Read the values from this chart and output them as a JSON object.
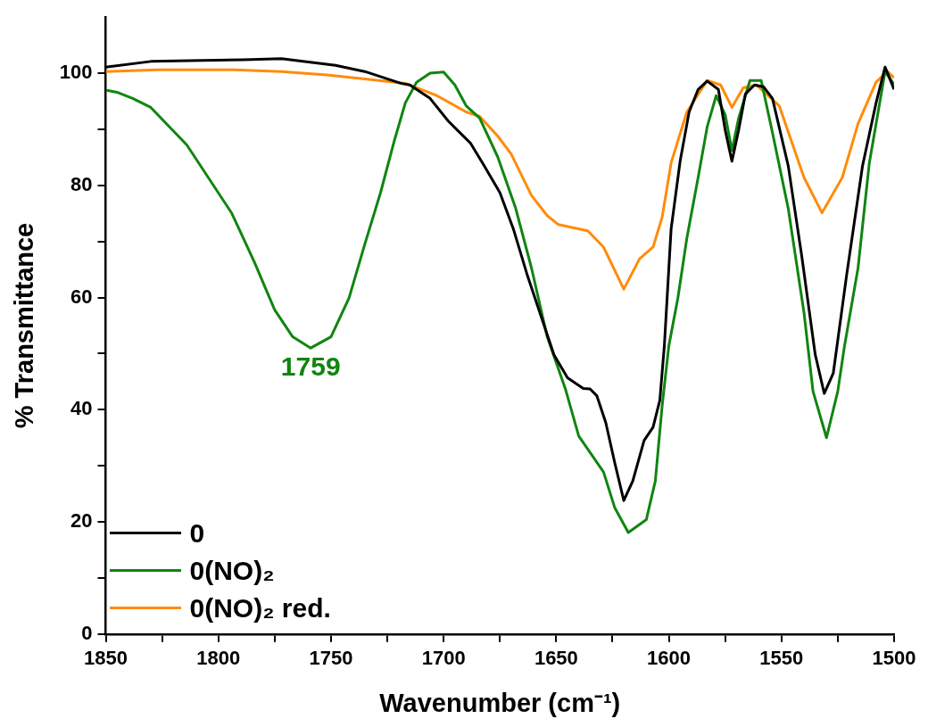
{
  "chart_data": {
    "type": "line",
    "xlabel": "Wavenumber (cm⁻¹)",
    "ylabel": "% Transmittance",
    "xlim": [
      1850,
      1500
    ],
    "xticks": [
      1850,
      {
        "value": 1825,
        "label": null
      },
      1800,
      {
        "value": 1775,
        "label": null
      },
      1750,
      {
        "value": 1725,
        "label": null
      },
      1700,
      {
        "value": 1675,
        "label": null
      },
      1650,
      {
        "value": 1625,
        "label": null
      },
      1600,
      {
        "value": 1575,
        "label": null
      },
      1550,
      {
        "value": 1525,
        "label": null
      },
      1500
    ],
    "ylim": [
      0,
      110
    ],
    "yticks": [
      0,
      {
        "value": 10,
        "label": null
      },
      20,
      {
        "value": 30,
        "label": null
      },
      40,
      {
        "value": 50,
        "label": null
      },
      60,
      {
        "value": 70,
        "label": null
      },
      80,
      {
        "value": 90,
        "label": null
      },
      100
    ],
    "grid": false,
    "legend": "bottom left",
    "marker": "none",
    "line_style": "solid",
    "annotations": [
      {
        "text": "1759",
        "x": 1759,
        "y": 51
      }
    ],
    "series": [
      {
        "name": "0",
        "color": "#000000",
        "x": [
          1850,
          1830,
          1789,
          1772,
          1748,
          1735,
          1719,
          1715,
          1706,
          1698,
          1688,
          1682,
          1675,
          1669,
          1663,
          1657,
          1651,
          1645,
          1638,
          1635,
          1632,
          1628,
          1624,
          1620,
          1616,
          1611,
          1607,
          1604,
          1602,
          1599,
          1595,
          1591,
          1587,
          1583,
          1578,
          1575,
          1572,
          1569,
          1566,
          1562,
          1558,
          1554,
          1547,
          1541,
          1535,
          1531,
          1527,
          1521,
          1514,
          1508,
          1504,
          1500
        ],
        "values": [
          101.1,
          102.1,
          102.4,
          102.6,
          101.4,
          100.3,
          98.2,
          97.9,
          95.5,
          91.5,
          87.5,
          83.5,
          78.7,
          72.2,
          64.2,
          57.0,
          49.8,
          45.7,
          43.8,
          43.7,
          42.5,
          37.7,
          30.5,
          23.8,
          27.3,
          34.5,
          36.9,
          41.7,
          51.4,
          72.2,
          84.3,
          93.1,
          97.1,
          98.6,
          97.1,
          89.9,
          84.3,
          89.9,
          96.3,
          97.9,
          97.6,
          95.5,
          83.5,
          67.4,
          49.8,
          42.9,
          46.5,
          64.2,
          83.5,
          94.7,
          101.1,
          97.1
        ]
      },
      {
        "name": "0(NO)₂",
        "color": "#108510",
        "x": [
          1850,
          1845,
          1838,
          1830,
          1814,
          1794,
          1784,
          1775,
          1767,
          1759,
          1750,
          1742,
          1735,
          1728,
          1722,
          1717,
          1712,
          1706,
          1700,
          1695,
          1690,
          1684,
          1676,
          1668,
          1661,
          1654,
          1646,
          1640,
          1629,
          1624,
          1618,
          1610,
          1606,
          1603,
          1600,
          1596,
          1592,
          1587,
          1583,
          1579,
          1575,
          1572,
          1569,
          1564,
          1559,
          1554,
          1547,
          1540,
          1536,
          1530,
          1525,
          1522,
          1516,
          1511,
          1504,
          1500
        ],
        "values": [
          97.0,
          96.6,
          95.5,
          93.9,
          87.2,
          75.0,
          66.3,
          57.8,
          53.0,
          51.0,
          53.0,
          59.9,
          69.5,
          78.7,
          87.8,
          94.7,
          98.4,
          100.0,
          100.2,
          97.9,
          94.2,
          92.0,
          85.1,
          75.9,
          65.3,
          53.0,
          43.8,
          35.3,
          28.9,
          22.5,
          18.1,
          20.4,
          27.3,
          40.6,
          51.4,
          59.9,
          70.6,
          81.4,
          90.4,
          96.0,
          92.6,
          86.2,
          92.0,
          98.7,
          98.7,
          89.4,
          75.9,
          57.3,
          43.3,
          35.0,
          43.3,
          51.4,
          65.3,
          84.0,
          100.3,
          98.0
        ]
      },
      {
        "name": "0(NO)₂ red.",
        "color": "#ff8c0a",
        "x": [
          1850,
          1827,
          1793,
          1772,
          1752,
          1736,
          1717,
          1703,
          1690,
          1684,
          1676,
          1670,
          1661,
          1654,
          1649,
          1636,
          1629,
          1620,
          1613,
          1607,
          1603,
          1599,
          1592,
          1583,
          1577,
          1572,
          1567,
          1561,
          1551,
          1540,
          1532,
          1523,
          1516,
          1508,
          1503,
          1500
        ],
        "values": [
          100.3,
          100.6,
          100.6,
          100.3,
          99.7,
          99.0,
          98.2,
          96.0,
          93.1,
          92.3,
          88.8,
          85.6,
          78.2,
          74.6,
          73.0,
          71.9,
          69.0,
          61.5,
          66.9,
          69.0,
          74.3,
          84.0,
          93.1,
          98.7,
          97.9,
          93.9,
          97.4,
          97.9,
          94.2,
          81.4,
          75.1,
          81.4,
          91.0,
          98.4,
          100.3,
          99.2
        ]
      }
    ]
  }
}
